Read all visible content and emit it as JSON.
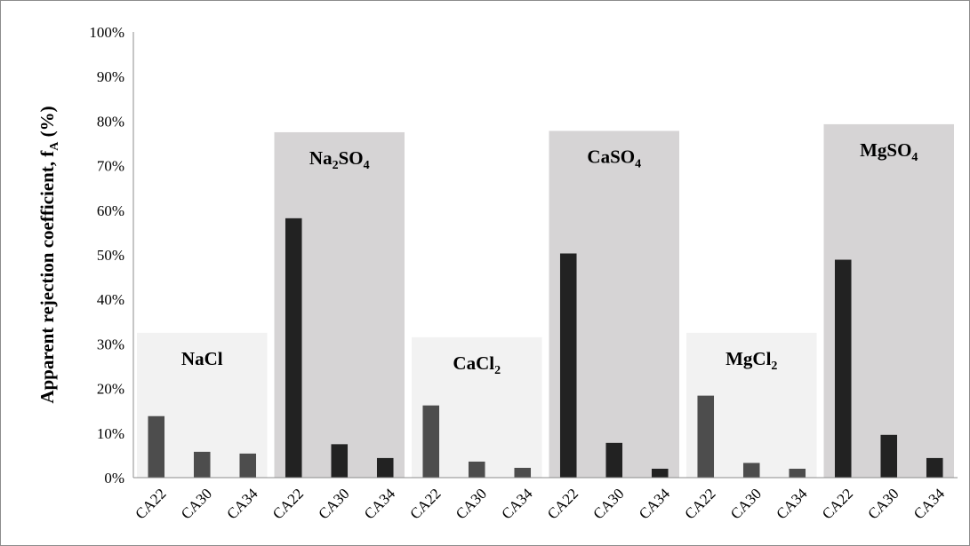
{
  "chart_data": {
    "type": "bar",
    "title": "",
    "xlabel": "",
    "ylabel": "Apparent rejection coefficient, f",
    "ylabel_subscript": "A",
    "ylabel_suffix": " (%)",
    "ylim": [
      0,
      100
    ],
    "yticks": [
      "0%",
      "10%",
      "20%",
      "30%",
      "40%",
      "50%",
      "60%",
      "70%",
      "80%",
      "90%",
      "100%"
    ],
    "grid": false,
    "legend": "none",
    "colors": {
      "bar_dark": "#222222",
      "bar_gray": "#4d4d4d",
      "panel_light": "#f2f2f2",
      "panel_dark": "#d6d4d5"
    },
    "groups": [
      {
        "name": "NaCl",
        "name_parts": [
          {
            "t": "NaCl"
          }
        ],
        "shade": "light",
        "panel_top": 32.5,
        "bars": [
          {
            "cat": "CA22",
            "value": 13.8
          },
          {
            "cat": "CA30",
            "value": 5.8
          },
          {
            "cat": "CA34",
            "value": 5.4
          }
        ]
      },
      {
        "name": "Na2SO4",
        "name_parts": [
          {
            "t": "Na"
          },
          {
            "t": "2",
            "sub": true
          },
          {
            "t": "SO"
          },
          {
            "t": "4",
            "sub": true
          }
        ],
        "shade": "dark",
        "panel_top": 77.5,
        "bars": [
          {
            "cat": "CA22",
            "value": 58.2
          },
          {
            "cat": "CA30",
            "value": 7.5
          },
          {
            "cat": "CA34",
            "value": 4.4
          }
        ]
      },
      {
        "name": "CaCl2",
        "name_parts": [
          {
            "t": "CaCl"
          },
          {
            "t": "2",
            "sub": true
          }
        ],
        "shade": "light",
        "panel_top": 31.5,
        "bars": [
          {
            "cat": "CA22",
            "value": 16.2
          },
          {
            "cat": "CA30",
            "value": 3.6
          },
          {
            "cat": "CA34",
            "value": 2.2
          }
        ]
      },
      {
        "name": "CaSO4",
        "name_parts": [
          {
            "t": "CaSO"
          },
          {
            "t": "4",
            "sub": true
          }
        ],
        "shade": "dark",
        "panel_top": 77.8,
        "bars": [
          {
            "cat": "CA22",
            "value": 50.3
          },
          {
            "cat": "CA30",
            "value": 7.8
          },
          {
            "cat": "CA34",
            "value": 2.0
          }
        ]
      },
      {
        "name": "MgCl2",
        "name_parts": [
          {
            "t": "MgCl"
          },
          {
            "t": "2",
            "sub": true
          }
        ],
        "shade": "light",
        "panel_top": 32.5,
        "bars": [
          {
            "cat": "CA22",
            "value": 18.4
          },
          {
            "cat": "CA30",
            "value": 3.3
          },
          {
            "cat": "CA34",
            "value": 2.0
          }
        ]
      },
      {
        "name": "MgSO4",
        "name_parts": [
          {
            "t": "MgSO"
          },
          {
            "t": "4",
            "sub": true
          }
        ],
        "shade": "dark",
        "panel_top": 79.3,
        "bars": [
          {
            "cat": "CA22",
            "value": 48.9
          },
          {
            "cat": "CA30",
            "value": 9.6
          },
          {
            "cat": "CA34",
            "value": 4.4
          }
        ]
      }
    ]
  }
}
